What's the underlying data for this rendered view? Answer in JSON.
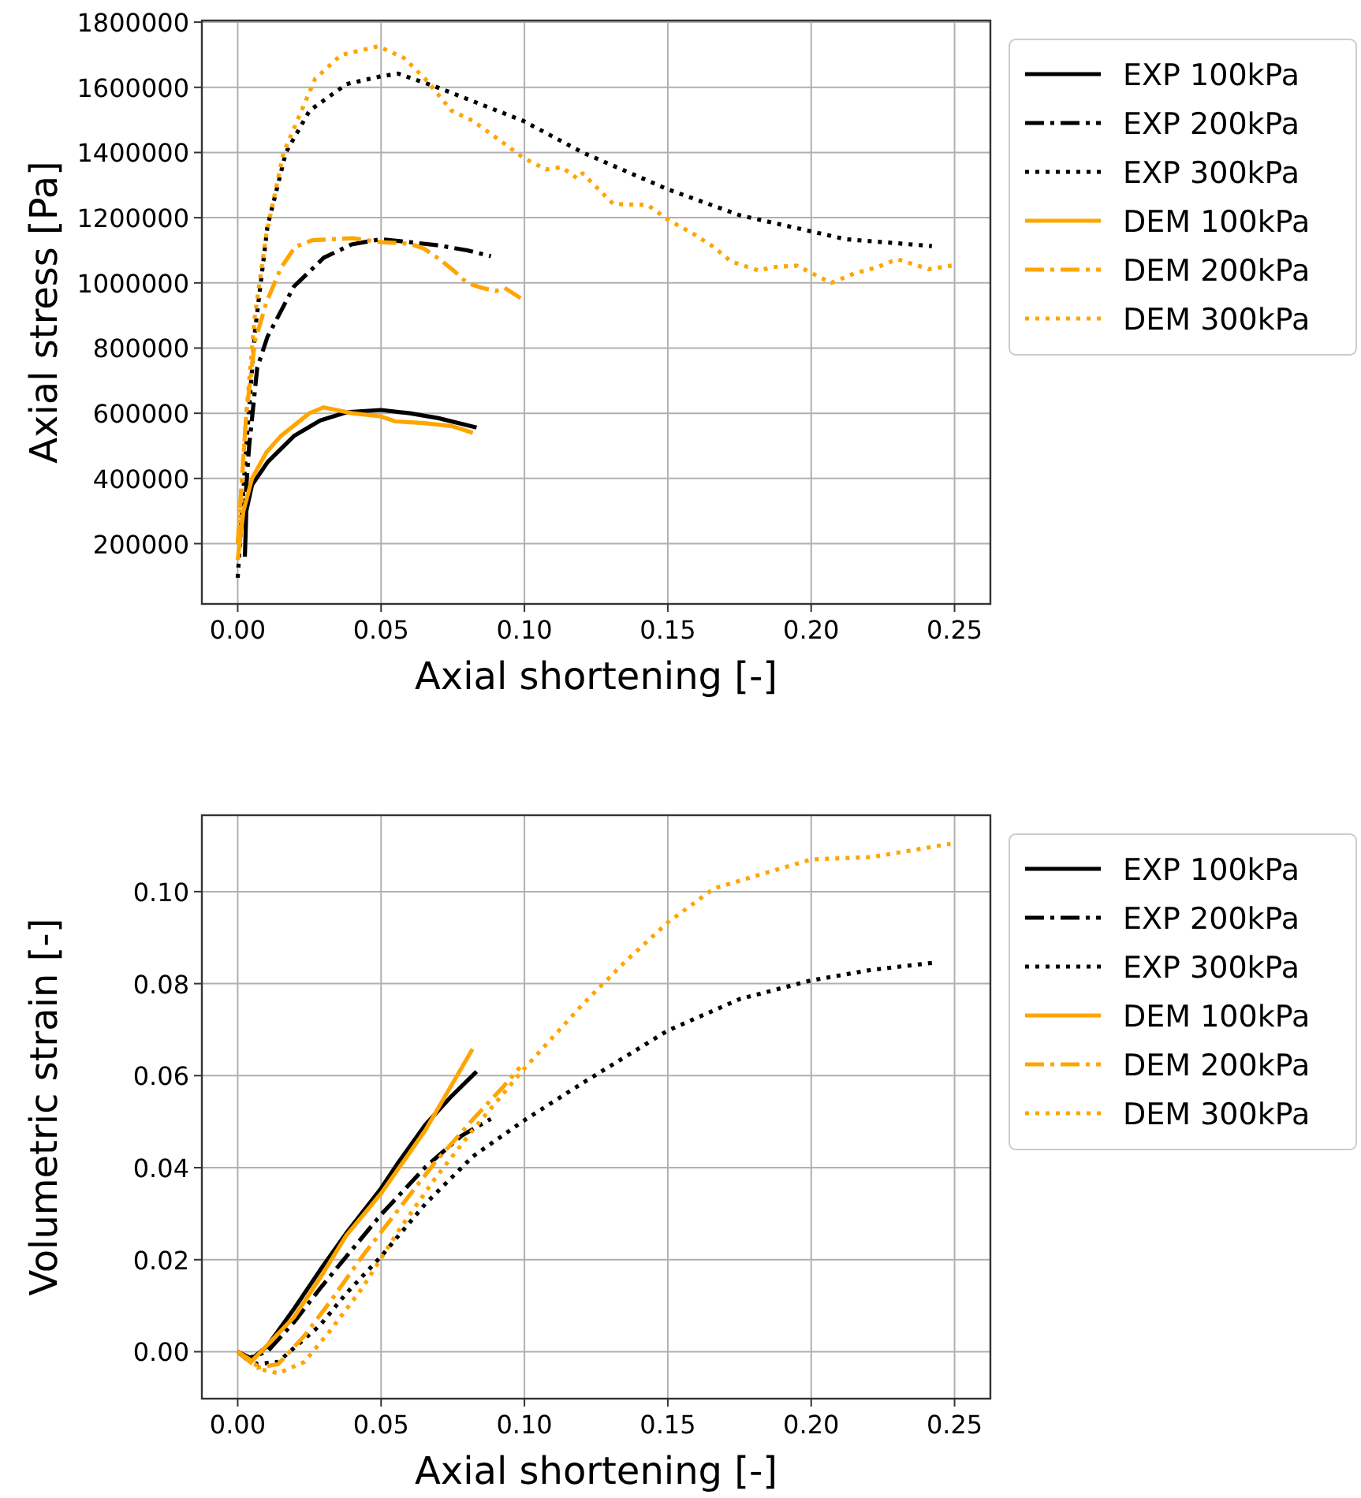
{
  "chart_data": [
    {
      "type": "line",
      "xlabel": "Axial shortening [-]",
      "ylabel": "Axial stress [Pa]",
      "xlim": [
        -0.0125,
        0.2625
      ],
      "xticks": [
        {
          "value": 0,
          "label": "0.00"
        },
        {
          "value": 0.05,
          "label": "0.05"
        },
        {
          "value": 0.1,
          "label": "0.10"
        },
        {
          "value": 0.15,
          "label": "0.15"
        },
        {
          "value": 0.2,
          "label": "0.20"
        },
        {
          "value": 0.25,
          "label": "0.25"
        }
      ],
      "ylim": [
        15000,
        1805000
      ],
      "yticks": [
        200000,
        400000,
        600000,
        800000,
        1000000,
        1200000,
        1400000,
        1600000,
        1800000
      ],
      "grid": true,
      "legend": "right",
      "series": [
        {
          "name": "EXP 100kPa",
          "color": "#000000",
          "line_style": "solid",
          "x": [
            0.0025,
            0.003,
            0.005,
            0.0104,
            0.0196,
            0.0288,
            0.0379,
            0.05,
            0.06,
            0.07,
            0.0833
          ],
          "values": [
            160000,
            300000,
            380000,
            450000,
            530000,
            578000,
            603000,
            610000,
            600000,
            585000,
            556000
          ]
        },
        {
          "name": "EXP 200kPa",
          "color": "#000000",
          "line_style": "dashdot",
          "x": [
            0.002,
            0.004,
            0.0068,
            0.0104,
            0.0196,
            0.03,
            0.0397,
            0.05,
            0.06,
            0.07,
            0.08,
            0.0883
          ],
          "values": [
            250000,
            500000,
            739000,
            835000,
            989000,
            1077000,
            1118000,
            1134000,
            1125000,
            1115000,
            1100000,
            1082000
          ]
        },
        {
          "name": "EXP 300kPa",
          "color": "#000000",
          "line_style": "dotted",
          "x": [
            0,
            0.003,
            0.006,
            0.0104,
            0.0168,
            0.0251,
            0.038,
            0.05,
            0.056,
            0.069,
            0.0996,
            0.1203,
            0.15,
            0.1753,
            0.2,
            0.212,
            0.2421
          ],
          "values": [
            95000,
            500000,
            850000,
            1174000,
            1400000,
            1529000,
            1610000,
            1634000,
            1642000,
            1602000,
            1497000,
            1400000,
            1287000,
            1207000,
            1158000,
            1134000,
            1113000
          ]
        },
        {
          "name": "DEM 100kPa",
          "color": "#ffa500",
          "line_style": "solid",
          "x": [
            0,
            0.002,
            0.005,
            0.01,
            0.015,
            0.02,
            0.025,
            0.03,
            0.04,
            0.05,
            0.055,
            0.065,
            0.075,
            0.082
          ],
          "values": [
            150000,
            300000,
            400000,
            480000,
            530000,
            565000,
            600000,
            618000,
            600000,
            590000,
            575000,
            570000,
            560000,
            540000
          ]
        },
        {
          "name": "DEM 200kPa",
          "color": "#ffa500",
          "line_style": "dashdot",
          "x": [
            0,
            0.003,
            0.006,
            0.01,
            0.015,
            0.02,
            0.026,
            0.04,
            0.05,
            0.06,
            0.065,
            0.07,
            0.075,
            0.08,
            0.085,
            0.09,
            0.093,
            0.0996
          ],
          "values": [
            200000,
            600000,
            820000,
            940000,
            1045000,
            1110000,
            1131000,
            1137000,
            1125000,
            1120000,
            1105000,
            1075000,
            1040000,
            1000000,
            985000,
            975000,
            985000,
            948000
          ]
        },
        {
          "name": "DEM 300kPa",
          "color": "#ffa500",
          "line_style": "dotted",
          "x": [
            0,
            0.003,
            0.006,
            0.01,
            0.016,
            0.027,
            0.036,
            0.049,
            0.058,
            0.0654,
            0.0745,
            0.082,
            0.091,
            0.0996,
            0.1075,
            0.113,
            0.1185,
            0.1203,
            0.131,
            0.143,
            0.15,
            0.159,
            0.166,
            0.172,
            0.182,
            0.186,
            0.195,
            0.207,
            0.215,
            0.223,
            0.23,
            0.241,
            0.249
          ],
          "values": [
            200000,
            600000,
            900000,
            1150000,
            1400000,
            1626000,
            1699000,
            1726000,
            1690000,
            1626000,
            1529000,
            1497000,
            1440000,
            1384000,
            1348000,
            1355000,
            1320000,
            1336000,
            1242000,
            1239000,
            1194000,
            1150000,
            1110000,
            1066000,
            1037000,
            1048000,
            1053000,
            1000000,
            1029000,
            1048000,
            1073000,
            1042000,
            1053000
          ]
        }
      ]
    },
    {
      "type": "line",
      "xlabel": "Axial shortening [-]",
      "ylabel": "Volumetric strain [-]",
      "xlim": [
        -0.0125,
        0.2625
      ],
      "xticks": [
        {
          "value": 0,
          "label": "0.00"
        },
        {
          "value": 0.05,
          "label": "0.05"
        },
        {
          "value": 0.1,
          "label": "0.10"
        },
        {
          "value": 0.15,
          "label": "0.15"
        },
        {
          "value": 0.2,
          "label": "0.20"
        },
        {
          "value": 0.25,
          "label": "0.25"
        }
      ],
      "ylim": [
        -0.0102,
        0.1166
      ],
      "yticks": [
        {
          "value": 0,
          "label": "0.00"
        },
        {
          "value": 0.02,
          "label": "0.02"
        },
        {
          "value": 0.04,
          "label": "0.04"
        },
        {
          "value": 0.06,
          "label": "0.06"
        },
        {
          "value": 0.08,
          "label": "0.08"
        },
        {
          "value": 0.1,
          "label": "0.10"
        }
      ],
      "grid": true,
      "legend": "right",
      "series": [
        {
          "name": "EXP 100kPa",
          "color": "#000000",
          "line_style": "solid",
          "x": [
            0,
            0.005,
            0.0104,
            0.0196,
            0.0288,
            0.0379,
            0.05,
            0.0562,
            0.0654,
            0.0745,
            0.0833
          ],
          "values": [
            0,
            -0.0015,
            0.0013,
            0.0093,
            0.0178,
            0.0258,
            0.0355,
            0.0413,
            0.0493,
            0.0555,
            0.0609
          ]
        },
        {
          "name": "EXP 200kPa",
          "color": "#000000",
          "line_style": "dashdot",
          "x": [
            0,
            0.0031,
            0.0104,
            0.0196,
            0.0288,
            0.0379,
            0.05,
            0.0654,
            0.0782,
            0.0883
          ],
          "values": [
            0,
            -0.0016,
            0.0001,
            0.0064,
            0.0138,
            0.0207,
            0.0298,
            0.0401,
            0.047,
            0.0506
          ]
        },
        {
          "name": "EXP 300kPa",
          "color": "#000000",
          "line_style": "dotted",
          "x": [
            0,
            0.0068,
            0.0141,
            0.0288,
            0.0379,
            0.05,
            0.0654,
            0.0819,
            0.1002,
            0.1203,
            0.15,
            0.1753,
            0.2,
            0.2211,
            0.2421
          ],
          "values": [
            0,
            -0.0027,
            -0.0022,
            0.0058,
            0.0127,
            0.0207,
            0.0321,
            0.0424,
            0.0504,
            0.0584,
            0.0698,
            0.0767,
            0.0807,
            0.083,
            0.0845
          ]
        },
        {
          "name": "DEM 100kPa",
          "color": "#ffa500",
          "line_style": "solid",
          "x": [
            0,
            0.005,
            0.0196,
            0.0288,
            0.0379,
            0.05,
            0.0654,
            0.0819
          ],
          "values": [
            0,
            -0.002,
            0.0075,
            0.0161,
            0.0253,
            0.0344,
            0.0481,
            0.0658
          ]
        },
        {
          "name": "DEM 200kPa",
          "color": "#ffa500",
          "line_style": "dashdot",
          "x": [
            0,
            0.0068,
            0.0141,
            0.0233,
            0.0324,
            0.0434,
            0.0562,
            0.069,
            0.0819,
            0.0929,
            0.0984
          ],
          "values": [
            0,
            -0.0035,
            -0.0027,
            0.0035,
            0.011,
            0.0207,
            0.031,
            0.0413,
            0.0504,
            0.0578,
            0.0618
          ]
        },
        {
          "name": "DEM 300kPa",
          "color": "#ffa500",
          "line_style": "dotted",
          "x": [
            0,
            0.0086,
            0.0141,
            0.0233,
            0.0324,
            0.0434,
            0.0562,
            0.069,
            0.0819,
            0.0996,
            0.1203,
            0.135,
            0.15,
            0.1661,
            0.1844,
            0.2,
            0.2211,
            0.2486
          ],
          "values": [
            0,
            -0.0039,
            -0.0047,
            -0.0022,
            0.0047,
            0.0138,
            0.0264,
            0.0378,
            0.0481,
            0.0613,
            0.0755,
            0.0847,
            0.0933,
            0.1007,
            0.1041,
            0.107,
            0.1075,
            0.1104
          ]
        }
      ]
    }
  ]
}
